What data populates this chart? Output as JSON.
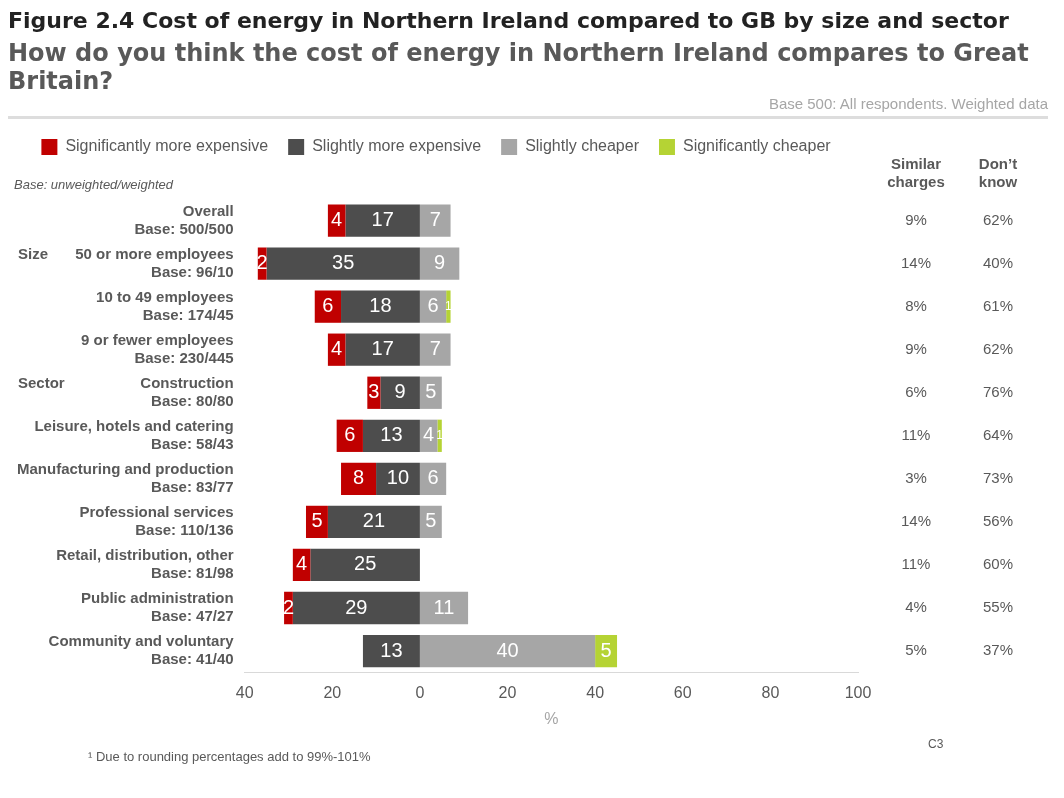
{
  "chart_data": {
    "type": "bar",
    "orientation": "horizontal",
    "title": "Figure 2.4 Cost of energy in Northern Ireland compared to GB by size and sector",
    "subtitle": "How do you think the cost of energy in Northern Ireland compares to Great Britain?",
    "xlabel": "%",
    "categories": [
      "Overall\nBase: 500/500",
      "50 or more employees\nBase: 96/10",
      "10 to 49 employees\nBase: 174/45",
      "9 or fewer employees\nBase: 230/445",
      "Construction\nBase: 80/80",
      "Leisure, hotels and catering\nBase: 58/43",
      "Manufacturing and production\nBase: 83/77",
      "Professional services\nBase: 110/136",
      "Retail, distribution, other\nBase: 81/98",
      "Public administration\nBase: 47/27",
      "Community and voluntary\nBase: 41/40"
    ],
    "series": [
      {
        "name": "Significantly more expensive",
        "color": "#c00000",
        "values": [
          4,
          2,
          6,
          4,
          3,
          6,
          8,
          5,
          4,
          2,
          null
        ],
        "base": [
          -21,
          -37,
          -24,
          -21,
          -12,
          -19,
          -18,
          -26,
          -29,
          -31,
          null
        ]
      },
      {
        "name": "Slightly more expensive",
        "color": "#4d4d4d",
        "values": [
          17,
          35,
          18,
          17,
          9,
          13,
          10,
          21,
          25,
          29,
          13
        ],
        "base": [
          -17,
          -35,
          -18,
          -17,
          -9,
          -13,
          -10,
          -21,
          -25,
          -29,
          -13
        ]
      },
      {
        "name": "Slightly cheaper",
        "color": "#a6a6a6",
        "values": [
          7,
          9,
          6,
          7,
          5,
          4,
          6,
          5,
          null,
          11,
          40
        ],
        "base": [
          0,
          0,
          0,
          0,
          0,
          0,
          0,
          0,
          null,
          0,
          0
        ]
      },
      {
        "name": "Significantly cheaper",
        "color": "#b5d334",
        "values": [
          null,
          null,
          1,
          null,
          null,
          1,
          null,
          null,
          null,
          null,
          5
        ],
        "base": [
          null,
          null,
          6,
          null,
          null,
          4,
          null,
          null,
          null,
          null,
          40
        ]
      }
    ],
    "data_labels": true,
    "xlim": [
      -40,
      100
    ],
    "xticks": [
      {
        "value": -40,
        "label": "40"
      },
      {
        "value": -20,
        "label": "20"
      },
      0,
      20,
      40,
      60,
      80,
      100
    ],
    "legend": "top",
    "grid": false,
    "annotations": [
      "Base 500: All respondents. Weighted data",
      "Base: unweighted/weighted",
      "Size",
      "Sector",
      "Similar\ncharges",
      "Don’t\nknow",
      "¹ Due to rounding percentages add to 99%-101%",
      "C3",
      "9%",
      "62%",
      "14%",
      "40%",
      "8%",
      "61%",
      "9%",
      "62%",
      "6%",
      "76%",
      "11%",
      "64%",
      "3%",
      "73%",
      "14%",
      "56%",
      "11%",
      "60%",
      "4%",
      "55%",
      "5%",
      "37%"
    ]
  }
}
